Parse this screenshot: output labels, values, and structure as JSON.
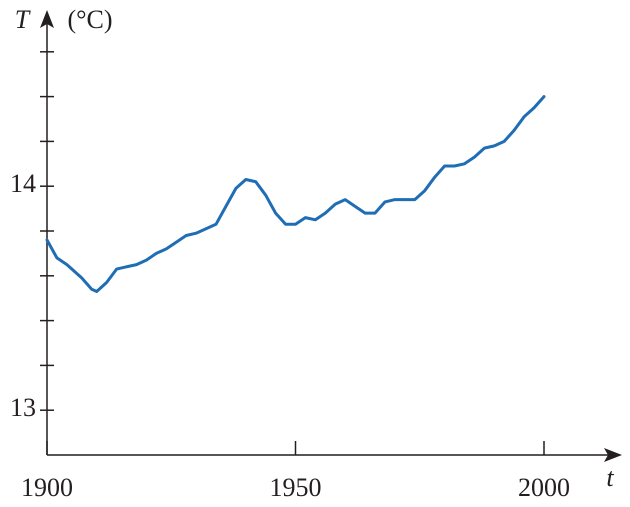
{
  "chart_data": {
    "type": "line",
    "y_label": "T",
    "y_unit": "(°C)",
    "x_label": "t",
    "x": [
      1900,
      1902,
      1904,
      1907,
      1909,
      1910,
      1912,
      1914,
      1916,
      1918,
      1920,
      1922,
      1924,
      1926,
      1928,
      1930,
      1932,
      1934,
      1936,
      1938,
      1940,
      1942,
      1944,
      1946,
      1948,
      1950,
      1952,
      1954,
      1956,
      1958,
      1960,
      1962,
      1964,
      1966,
      1968,
      1970,
      1972,
      1974,
      1976,
      1978,
      1980,
      1982,
      1984,
      1986,
      1988,
      1990,
      1992,
      1994,
      1996,
      1998,
      2000
    ],
    "series": [
      {
        "color": "#1f6db5",
        "values": [
          13.76,
          13.68,
          13.65,
          13.59,
          13.54,
          13.53,
          13.57,
          13.63,
          13.64,
          13.65,
          13.67,
          13.7,
          13.72,
          13.75,
          13.78,
          13.79,
          13.81,
          13.83,
          13.91,
          13.99,
          14.03,
          14.02,
          13.96,
          13.88,
          13.83,
          13.83,
          13.86,
          13.85,
          13.88,
          13.92,
          13.94,
          13.91,
          13.88,
          13.88,
          13.93,
          13.94,
          13.94,
          13.94,
          13.98,
          14.04,
          14.09,
          14.09,
          14.1,
          14.13,
          14.17,
          14.18,
          14.2,
          14.25,
          14.31,
          14.35,
          14.4
        ]
      }
    ],
    "xlim": [
      1900,
      2000
    ],
    "xticks": [
      1900,
      1950,
      2000
    ],
    "ylim": [
      12.8,
      14.7
    ],
    "yticks": [
      13,
      14
    ],
    "yminor_ticks": [
      13.2,
      13.4,
      13.6,
      13.8,
      14.2,
      14.4,
      14.6
    ]
  }
}
